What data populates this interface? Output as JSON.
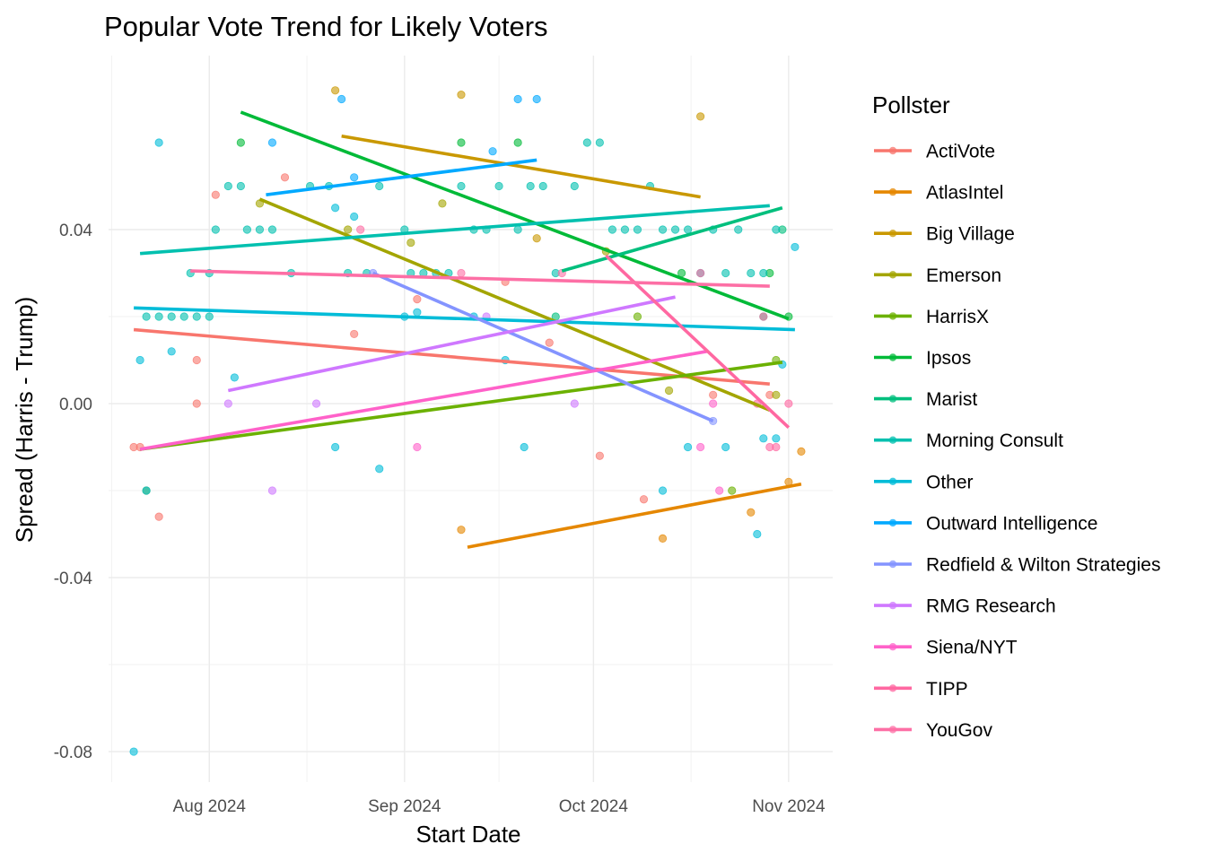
{
  "chart_data": {
    "type": "scatter",
    "title": "Popular Vote Trend for Likely Voters",
    "xlabel": "Start Date",
    "ylabel": "Spread (Harris - Trump)",
    "x_ticks": [
      {
        "date": "2024-08-01",
        "label": "Aug 2024"
      },
      {
        "date": "2024-09-01",
        "label": "Sep 2024"
      },
      {
        "date": "2024-10-01",
        "label": "Oct 2024"
      },
      {
        "date": "2024-11-01",
        "label": "Nov 2024"
      }
    ],
    "y_ticks": [
      {
        "value": 0.04,
        "label": "0.04"
      },
      {
        "value": 0.0,
        "label": "0.00"
      },
      {
        "value": -0.04,
        "label": "-0.04"
      },
      {
        "value": -0.08,
        "label": "-0.08"
      }
    ],
    "xlim": [
      "2024-07-16",
      "2024-11-08"
    ],
    "ylim": [
      -0.087,
      0.08
    ],
    "grid": true,
    "legend": {
      "title": "Pollster",
      "position": "right"
    },
    "series": [
      {
        "name": "ActiVote",
        "color": "#F8766D",
        "trend": [
          [
            "2024-07-20",
            0.017
          ],
          [
            "2024-10-29",
            0.0045
          ]
        ],
        "points": [
          [
            "2024-07-20",
            -0.01
          ],
          [
            "2024-07-21",
            -0.01
          ],
          [
            "2024-07-24",
            -0.026
          ],
          [
            "2024-07-30",
            0.01
          ],
          [
            "2024-07-30",
            0.0
          ],
          [
            "2024-08-02",
            0.048
          ],
          [
            "2024-08-13",
            0.052
          ],
          [
            "2024-08-24",
            0.016
          ],
          [
            "2024-09-03",
            0.024
          ],
          [
            "2024-09-17",
            0.028
          ],
          [
            "2024-09-24",
            0.014
          ],
          [
            "2024-10-02",
            -0.012
          ],
          [
            "2024-10-09",
            -0.022
          ],
          [
            "2024-10-20",
            0.002
          ],
          [
            "2024-10-29",
            0.002
          ]
        ]
      },
      {
        "name": "AtlasIntel",
        "color": "#E58700",
        "trend": [
          [
            "2024-09-11",
            -0.033
          ],
          [
            "2024-11-03",
            -0.0185
          ]
        ],
        "points": [
          [
            "2024-09-10",
            -0.029
          ],
          [
            "2024-10-12",
            -0.031
          ],
          [
            "2024-10-26",
            -0.025
          ],
          [
            "2024-11-01",
            -0.018
          ],
          [
            "2024-11-03",
            -0.011
          ]
        ]
      },
      {
        "name": "Big Village",
        "color": "#C99800",
        "trend": [
          [
            "2024-08-22",
            0.0615
          ],
          [
            "2024-10-18",
            0.0475
          ]
        ],
        "points": [
          [
            "2024-08-21",
            0.072
          ],
          [
            "2024-09-10",
            0.071
          ],
          [
            "2024-09-22",
            0.038
          ],
          [
            "2024-10-18",
            0.066
          ]
        ]
      },
      {
        "name": "Emerson",
        "color": "#A3A500",
        "trend": [
          [
            "2024-08-09",
            0.047
          ],
          [
            "2024-10-29",
            -0.0015
          ]
        ],
        "points": [
          [
            "2024-08-09",
            0.046
          ],
          [
            "2024-08-23",
            0.04
          ],
          [
            "2024-09-02",
            0.037
          ],
          [
            "2024-09-07",
            0.046
          ],
          [
            "2024-10-03",
            0.035
          ],
          [
            "2024-10-13",
            0.003
          ],
          [
            "2024-10-30",
            0.002
          ]
        ]
      },
      {
        "name": "HarrisX",
        "color": "#6BB100",
        "trend": [
          [
            "2024-07-21",
            -0.0105
          ],
          [
            "2024-10-31",
            0.0095
          ]
        ],
        "points": [
          [
            "2024-07-22",
            -0.02
          ],
          [
            "2024-10-08",
            0.02
          ],
          [
            "2024-10-23",
            -0.02
          ],
          [
            "2024-10-30",
            0.01
          ]
        ]
      },
      {
        "name": "Ipsos",
        "color": "#00BA38",
        "trend": [
          [
            "2024-08-06",
            0.067
          ],
          [
            "2024-11-01",
            0.0195
          ]
        ],
        "points": [
          [
            "2024-08-06",
            0.06
          ],
          [
            "2024-09-10",
            0.06
          ],
          [
            "2024-09-19",
            0.06
          ],
          [
            "2024-10-15",
            0.03
          ],
          [
            "2024-10-29",
            0.03
          ],
          [
            "2024-11-01",
            0.02
          ]
        ]
      },
      {
        "name": "Marist",
        "color": "#00BF7D",
        "trend": [
          [
            "2024-09-26",
            0.0305
          ],
          [
            "2024-10-31",
            0.045
          ]
        ],
        "points": [
          [
            "2024-09-25",
            0.02
          ],
          [
            "2024-10-28",
            0.02
          ],
          [
            "2024-10-31",
            0.04
          ]
        ]
      },
      {
        "name": "Morning Consult",
        "color": "#00C0AF",
        "trend": [
          [
            "2024-07-21",
            0.0345
          ],
          [
            "2024-10-29",
            0.0455
          ]
        ],
        "points": [
          [
            "2024-07-22",
            0.02
          ],
          [
            "2024-07-24",
            0.02
          ],
          [
            "2024-07-26",
            0.02
          ],
          [
            "2024-07-28",
            0.02
          ],
          [
            "2024-07-30",
            0.02
          ],
          [
            "2024-08-01",
            0.02
          ],
          [
            "2024-07-29",
            0.03
          ],
          [
            "2024-08-01",
            0.03
          ],
          [
            "2024-08-02",
            0.04
          ],
          [
            "2024-08-04",
            0.05
          ],
          [
            "2024-08-06",
            0.05
          ],
          [
            "2024-08-07",
            0.04
          ],
          [
            "2024-08-09",
            0.04
          ],
          [
            "2024-08-11",
            0.04
          ],
          [
            "2024-08-14",
            0.03
          ],
          [
            "2024-08-17",
            0.05
          ],
          [
            "2024-08-20",
            0.05
          ],
          [
            "2024-08-23",
            0.03
          ],
          [
            "2024-08-26",
            0.03
          ],
          [
            "2024-08-28",
            0.05
          ],
          [
            "2024-09-01",
            0.04
          ],
          [
            "2024-09-02",
            0.03
          ],
          [
            "2024-09-04",
            0.03
          ],
          [
            "2024-09-06",
            0.03
          ],
          [
            "2024-09-08",
            0.03
          ],
          [
            "2024-09-10",
            0.05
          ],
          [
            "2024-09-12",
            0.04
          ],
          [
            "2024-09-14",
            0.04
          ],
          [
            "2024-09-16",
            0.05
          ],
          [
            "2024-09-19",
            0.04
          ],
          [
            "2024-09-21",
            0.05
          ],
          [
            "2024-09-23",
            0.05
          ],
          [
            "2024-09-25",
            0.03
          ],
          [
            "2024-09-28",
            0.05
          ],
          [
            "2024-09-30",
            0.06
          ],
          [
            "2024-10-02",
            0.06
          ],
          [
            "2024-10-04",
            0.04
          ],
          [
            "2024-10-06",
            0.04
          ],
          [
            "2024-10-08",
            0.04
          ],
          [
            "2024-10-10",
            0.05
          ],
          [
            "2024-10-12",
            0.04
          ],
          [
            "2024-10-14",
            0.04
          ],
          [
            "2024-10-16",
            0.04
          ],
          [
            "2024-10-18",
            0.03
          ],
          [
            "2024-10-20",
            0.04
          ],
          [
            "2024-10-22",
            0.03
          ],
          [
            "2024-10-24",
            0.04
          ],
          [
            "2024-10-26",
            0.03
          ],
          [
            "2024-10-28",
            0.03
          ],
          [
            "2024-10-30",
            0.04
          ]
        ]
      },
      {
        "name": "Other",
        "color": "#00BCD8",
        "trend": [
          [
            "2024-07-20",
            0.022
          ],
          [
            "2024-11-02",
            0.017
          ]
        ],
        "points": [
          [
            "2024-07-20",
            -0.08
          ],
          [
            "2024-07-21",
            0.01
          ],
          [
            "2024-07-22",
            -0.02
          ],
          [
            "2024-07-24",
            0.06
          ],
          [
            "2024-07-26",
            0.012
          ],
          [
            "2024-08-05",
            0.006
          ],
          [
            "2024-08-21",
            -0.01
          ],
          [
            "2024-08-21",
            0.045
          ],
          [
            "2024-08-24",
            0.043
          ],
          [
            "2024-08-28",
            -0.015
          ],
          [
            "2024-09-01",
            0.02
          ],
          [
            "2024-09-03",
            0.021
          ],
          [
            "2024-09-12",
            0.02
          ],
          [
            "2024-09-17",
            0.01
          ],
          [
            "2024-09-20",
            -0.01
          ],
          [
            "2024-10-12",
            -0.02
          ],
          [
            "2024-10-16",
            -0.01
          ],
          [
            "2024-10-22",
            -0.01
          ],
          [
            "2024-10-27",
            -0.03
          ],
          [
            "2024-10-28",
            -0.008
          ],
          [
            "2024-10-30",
            -0.008
          ],
          [
            "2024-11-02",
            0.036
          ],
          [
            "2024-10-31",
            0.009
          ]
        ]
      },
      {
        "name": "Outward Intelligence",
        "color": "#00A9FF",
        "trend": [
          [
            "2024-08-10",
            0.048
          ],
          [
            "2024-09-22",
            0.056
          ]
        ],
        "points": [
          [
            "2024-08-11",
            0.06
          ],
          [
            "2024-08-22",
            0.07
          ],
          [
            "2024-09-15",
            0.058
          ],
          [
            "2024-09-19",
            0.07
          ],
          [
            "2024-09-22",
            0.07
          ],
          [
            "2024-08-24",
            0.052
          ]
        ]
      },
      {
        "name": "Redfield & Wilton Strategies",
        "color": "#8494FF",
        "trend": [
          [
            "2024-08-27",
            0.03
          ],
          [
            "2024-10-20",
            -0.004
          ]
        ],
        "points": [
          [
            "2024-08-27",
            0.03
          ],
          [
            "2024-10-20",
            -0.004
          ]
        ]
      },
      {
        "name": "RMG Research",
        "color": "#CF78FF",
        "trend": [
          [
            "2024-08-04",
            0.003
          ],
          [
            "2024-10-14",
            0.0245
          ]
        ],
        "points": [
          [
            "2024-08-04",
            0.0
          ],
          [
            "2024-08-11",
            -0.02
          ],
          [
            "2024-08-18",
            0.0
          ],
          [
            "2024-09-14",
            0.02
          ],
          [
            "2024-09-28",
            0.0
          ]
        ]
      },
      {
        "name": "Siena/NYT",
        "color": "#FF61C9",
        "trend": [
          [
            "2024-07-21",
            -0.0105
          ],
          [
            "2024-10-19",
            0.012
          ]
        ],
        "points": [
          [
            "2024-09-03",
            -0.01
          ],
          [
            "2024-10-18",
            -0.01
          ],
          [
            "2024-10-21",
            -0.02
          ],
          [
            "2024-10-20",
            0.0
          ]
        ]
      },
      {
        "name": "TIPP",
        "color": "#FF68A1",
        "trend": [
          [
            "2024-10-03",
            0.034
          ],
          [
            "2024-11-01",
            -0.0055
          ]
        ],
        "points": [
          [
            "2024-10-27",
            0.0
          ],
          [
            "2024-10-29",
            -0.01
          ],
          [
            "2024-10-30",
            -0.01
          ],
          [
            "2024-11-01",
            0.0
          ]
        ]
      },
      {
        "name": "YouGov",
        "color": "#FD6FA5",
        "trend": [
          [
            "2024-07-29",
            0.0305
          ],
          [
            "2024-10-29",
            0.027
          ]
        ],
        "points": [
          [
            "2024-08-25",
            0.04
          ],
          [
            "2024-09-10",
            0.03
          ],
          [
            "2024-09-26",
            0.03
          ],
          [
            "2024-10-18",
            0.03
          ],
          [
            "2024-10-28",
            0.02
          ]
        ]
      }
    ]
  }
}
